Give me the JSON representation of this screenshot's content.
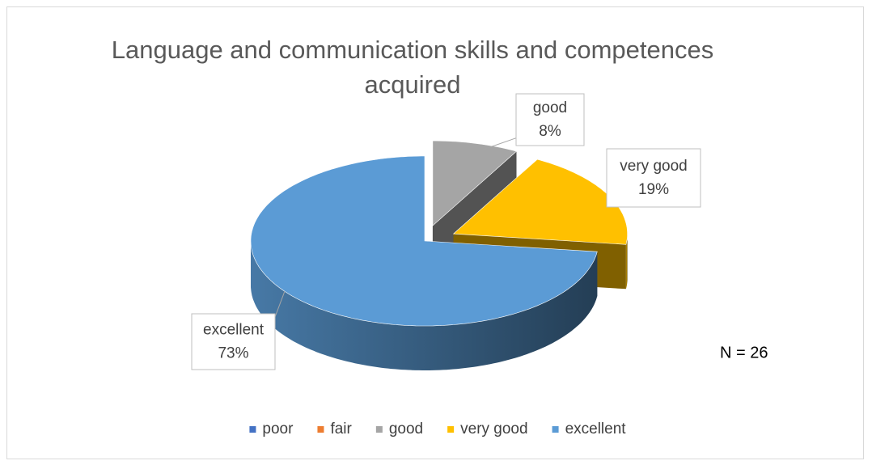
{
  "chart_data": {
    "type": "pie3d",
    "title": "Language and communication skills and competences acquired",
    "categories": [
      "poor",
      "fair",
      "good",
      "very good",
      "excellent"
    ],
    "values": [
      0,
      0,
      8,
      19,
      73
    ],
    "value_labels": [
      null,
      null,
      "8%",
      "19%",
      "73%"
    ],
    "colors": [
      "#4472c4",
      "#ed7d31",
      "#a5a5a5",
      "#ffc000",
      "#5b9bd5"
    ],
    "annotation": "N = 26",
    "legend": "bottom"
  }
}
